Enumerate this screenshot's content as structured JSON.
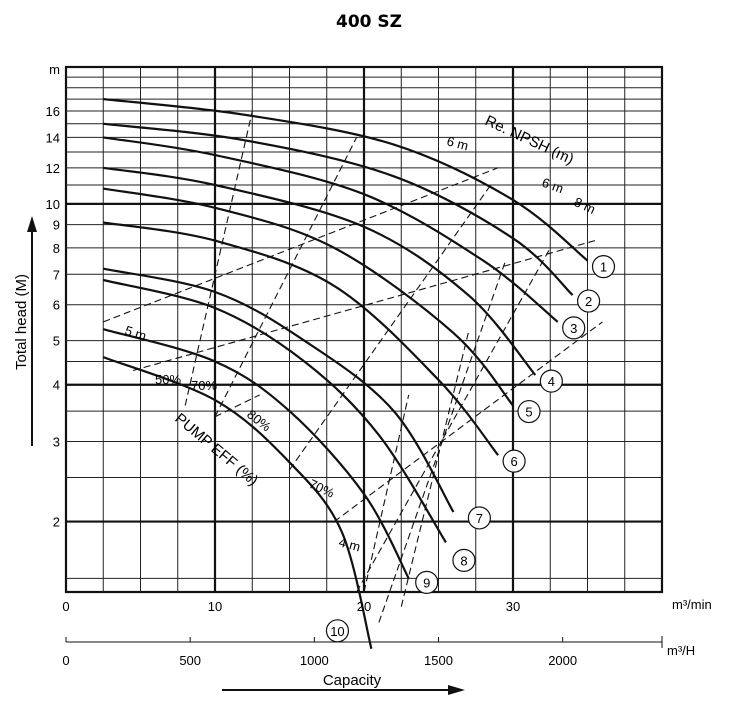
{
  "chart_data": {
    "type": "line",
    "title": "400 SZ",
    "ylabel": "Total head (M)",
    "y_unit_top": "m",
    "x_unit_top": "m³/min",
    "x_unit_bottom": "m³/H",
    "xlabel_bottom": "Capacity",
    "y_scale": "log",
    "ylim": [
      1.4,
      20
    ],
    "xlim": [
      0,
      40
    ],
    "x_ticks_min": [
      "0",
      "10",
      "20",
      "30"
    ],
    "x_ticks_hour": [
      "0",
      "500",
      "1000",
      "1500",
      "2000"
    ],
    "y_ticks": [
      "16",
      "14",
      "12",
      "10",
      "9",
      "8",
      "7",
      "6",
      "5",
      "4",
      "3",
      "2"
    ],
    "grid": true,
    "series": [
      {
        "name": "1",
        "x": [
          2.5,
          12,
          22,
          30,
          35
        ],
        "y": [
          17,
          15.7,
          13.5,
          10.2,
          7.5
        ]
      },
      {
        "name": "2",
        "x": [
          2.5,
          12,
          22,
          30,
          34
        ],
        "y": [
          15,
          13.8,
          11.5,
          8.4,
          6.3
        ]
      },
      {
        "name": "3",
        "x": [
          2.5,
          10,
          20,
          28,
          33
        ],
        "y": [
          14,
          12.8,
          10.5,
          7.5,
          5.5
        ]
      },
      {
        "name": "4",
        "x": [
          2.5,
          10,
          20,
          27,
          31.5
        ],
        "y": [
          12,
          11,
          8.9,
          6.3,
          4.2
        ]
      },
      {
        "name": "5",
        "x": [
          2.5,
          10,
          18,
          26,
          30
        ],
        "y": [
          10.8,
          9.8,
          8,
          5.2,
          3.6
        ]
      },
      {
        "name": "6",
        "x": [
          2.5,
          10,
          18,
          25,
          29
        ],
        "y": [
          9.1,
          8.3,
          6.6,
          4.1,
          2.8
        ]
      },
      {
        "name": "7",
        "x": [
          2.5,
          10,
          16,
          22,
          26
        ],
        "y": [
          7.2,
          6.4,
          5,
          3.5,
          2.1
        ]
      },
      {
        "name": "8",
        "x": [
          2.5,
          10,
          16,
          21,
          25.5
        ],
        "y": [
          6.8,
          5.9,
          4.5,
          3.1,
          1.8
        ]
      },
      {
        "name": "9",
        "x": [
          2.5,
          10,
          15,
          20,
          23
        ],
        "y": [
          5.3,
          4.5,
          3.5,
          2.3,
          1.5
        ]
      },
      {
        "name": "10",
        "x": [
          2.5,
          10,
          15,
          18.5,
          20.5
        ],
        "y": [
          4.6,
          3.7,
          2.7,
          1.9,
          1.05
        ]
      }
    ],
    "annotations": [
      "Re. NPSH (m)",
      "PUMP EFF (%)",
      "6 m",
      "6 m",
      "8 m",
      "5 m",
      "4 m",
      "50%",
      "70%",
      "80%",
      "70%"
    ]
  }
}
